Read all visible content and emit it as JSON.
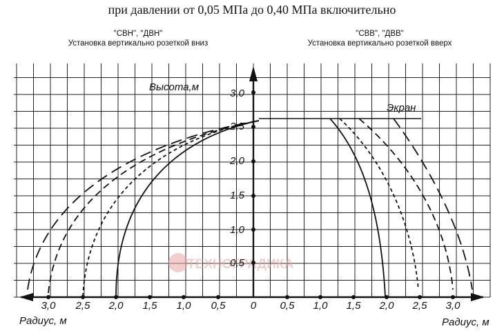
{
  "title": "при давлении от 0,05 МПа до 0,40 МПа включительно",
  "left_panel": {
    "models": "\"СВН\", \"ДВН\"",
    "description": "Установка вертикально розеткой вниз"
  },
  "right_panel": {
    "models": "\"СВВ\", \"ДВВ\"",
    "description": "Установка вертикально розеткой  вверх"
  },
  "axis": {
    "height_label": "Высота,м",
    "radius_label_left": "Радиус, м",
    "radius_label_right": "Радиус, м",
    "screen_label": "Экран",
    "y_ticks": [
      "0,5",
      "1,0",
      "1,5",
      "2,0",
      "2,5",
      "3,0"
    ],
    "x_ticks_left": [
      "3,0",
      "2,5",
      "2,0",
      "1,5",
      "1,0",
      "0,5",
      "0"
    ],
    "x_ticks_right": [
      "0,5",
      "1,0",
      "1,5",
      "2,0",
      "2,5",
      "3,0"
    ]
  },
  "watermark": "ТЕХНОГРАДИКА",
  "colors": {
    "line": "#111111",
    "grid": "#222222",
    "watermark": "#e8a6a6"
  }
}
